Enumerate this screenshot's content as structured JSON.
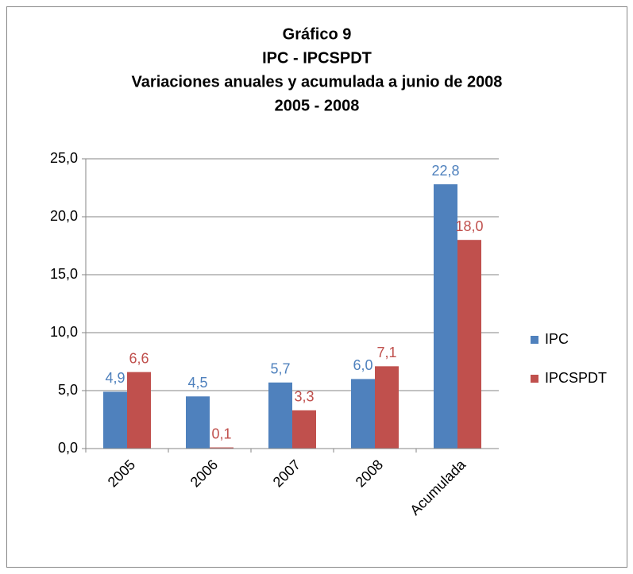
{
  "chart_data": {
    "type": "bar",
    "title": [
      "Gráfico 9",
      "IPC - IPCSPDT",
      "Variaciones anuales y acumulada a junio de 2008",
      "2005 - 2008"
    ],
    "categories": [
      "2005",
      "2006",
      "2007",
      "2008",
      "Acumulada"
    ],
    "series": [
      {
        "name": "IPC",
        "color": "#4f81bd",
        "values": [
          4.9,
          4.5,
          5.7,
          6.0,
          22.8
        ],
        "value_labels": [
          "4,9",
          "4,5",
          "5,7",
          "6,0",
          "22,8"
        ]
      },
      {
        "name": "IPCSPDT",
        "color": "#c0504d",
        "values": [
          6.6,
          0.1,
          3.3,
          7.1,
          18.0
        ],
        "value_labels": [
          "6,6",
          "0,1",
          "3,3",
          "7,1",
          "18,0"
        ]
      }
    ],
    "ylim": [
      0,
      25
    ],
    "yticks": [
      {
        "value": 0,
        "label": "0,0"
      },
      {
        "value": 5,
        "label": "5,0"
      },
      {
        "value": 10,
        "label": "10,0"
      },
      {
        "value": 15,
        "label": "15,0"
      },
      {
        "value": 20,
        "label": "20,0"
      },
      {
        "value": 25,
        "label": "25,0"
      }
    ],
    "grid": true,
    "legend": "right"
  }
}
